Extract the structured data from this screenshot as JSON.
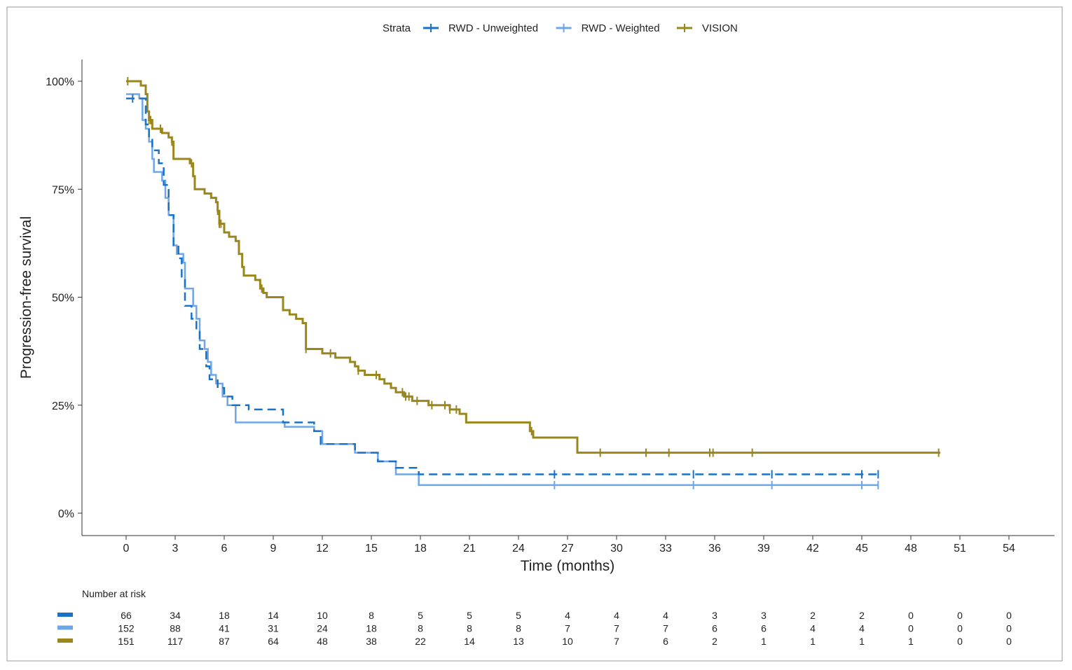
{
  "chart_data": {
    "type": "line",
    "subtype": "kaplan-meier step",
    "legend": {
      "title": "Strata",
      "placement": "top"
    },
    "xlabel": "Time (months)",
    "ylabel": "Progression-free survival",
    "xlim": [
      0,
      54
    ],
    "ylim": [
      0,
      100
    ],
    "xticks": [
      0,
      3,
      6,
      9,
      12,
      15,
      18,
      21,
      24,
      27,
      30,
      33,
      36,
      39,
      42,
      45,
      48,
      51,
      54
    ],
    "yticks": [
      "0%",
      "25%",
      "50%",
      "75%",
      "100%"
    ],
    "grid": false,
    "series": [
      {
        "name": "RWD - Unweighted",
        "color": "#1873c8",
        "dash": true,
        "steps": [
          [
            0,
            96
          ],
          [
            1.2,
            90
          ],
          [
            1.4,
            87
          ],
          [
            1.6,
            84
          ],
          [
            2.0,
            81
          ],
          [
            2.3,
            76
          ],
          [
            2.6,
            69
          ],
          [
            2.9,
            62
          ],
          [
            3.2,
            59
          ],
          [
            3.4,
            54
          ],
          [
            3.6,
            48
          ],
          [
            4.0,
            45
          ],
          [
            4.3,
            42
          ],
          [
            4.5,
            38
          ],
          [
            4.9,
            34
          ],
          [
            5.1,
            31
          ],
          [
            5.6,
            29
          ],
          [
            6.0,
            27
          ],
          [
            6.5,
            25
          ],
          [
            7.5,
            24
          ],
          [
            9.6,
            21
          ],
          [
            11.5,
            19
          ],
          [
            11.9,
            16
          ],
          [
            14.0,
            14
          ],
          [
            15.4,
            12
          ],
          [
            16.5,
            10.5
          ],
          [
            17.9,
            9
          ],
          [
            46,
            9
          ]
        ],
        "censor": [
          0.4,
          26.2,
          34.7,
          39.5,
          45,
          46
        ]
      },
      {
        "name": "RWD - Weighted",
        "color": "#6ea6e6",
        "dash": false,
        "steps": [
          [
            0,
            97
          ],
          [
            0.8,
            96
          ],
          [
            1.0,
            91
          ],
          [
            1.2,
            89
          ],
          [
            1.4,
            86
          ],
          [
            1.6,
            82
          ],
          [
            1.7,
            79
          ],
          [
            2.2,
            77
          ],
          [
            2.4,
            73
          ],
          [
            2.6,
            69
          ],
          [
            2.9,
            62
          ],
          [
            3.1,
            60
          ],
          [
            3.5,
            58
          ],
          [
            3.6,
            52
          ],
          [
            4.1,
            48
          ],
          [
            4.3,
            45
          ],
          [
            4.5,
            40
          ],
          [
            4.8,
            38
          ],
          [
            5.0,
            35
          ],
          [
            5.2,
            32
          ],
          [
            5.5,
            30
          ],
          [
            5.9,
            27
          ],
          [
            6.2,
            25
          ],
          [
            6.7,
            21
          ],
          [
            9.7,
            20
          ],
          [
            11.5,
            19
          ],
          [
            12.0,
            16
          ],
          [
            14.0,
            14
          ],
          [
            15.4,
            12
          ],
          [
            16.5,
            9
          ],
          [
            17.9,
            6.5
          ],
          [
            46,
            6.5
          ]
        ],
        "censor": [
          26.2,
          34.7,
          39.5,
          45,
          46
        ]
      },
      {
        "name": "VISION",
        "color": "#9a861c",
        "dash": false,
        "steps": [
          [
            0,
            100
          ],
          [
            0.9,
            99
          ],
          [
            1.2,
            97
          ],
          [
            1.3,
            93
          ],
          [
            1.4,
            91
          ],
          [
            1.6,
            89
          ],
          [
            2.2,
            88
          ],
          [
            2.6,
            87
          ],
          [
            2.8,
            86
          ],
          [
            2.9,
            82
          ],
          [
            3.9,
            81
          ],
          [
            4.1,
            78
          ],
          [
            4.2,
            75
          ],
          [
            4.8,
            74
          ],
          [
            5.2,
            73
          ],
          [
            5.5,
            72
          ],
          [
            5.6,
            70
          ],
          [
            5.7,
            67
          ],
          [
            6.0,
            65
          ],
          [
            6.3,
            64
          ],
          [
            6.7,
            63
          ],
          [
            6.9,
            60
          ],
          [
            7.1,
            57
          ],
          [
            7.2,
            55
          ],
          [
            7.9,
            54
          ],
          [
            8.2,
            52
          ],
          [
            8.4,
            51
          ],
          [
            8.6,
            50
          ],
          [
            9.6,
            47
          ],
          [
            10.0,
            46
          ],
          [
            10.4,
            45
          ],
          [
            10.8,
            44
          ],
          [
            11.0,
            38
          ],
          [
            12.0,
            37
          ],
          [
            12.8,
            36
          ],
          [
            13.7,
            35
          ],
          [
            14.0,
            34
          ],
          [
            14.2,
            33
          ],
          [
            14.6,
            32
          ],
          [
            15.5,
            31
          ],
          [
            15.8,
            30
          ],
          [
            16.2,
            29
          ],
          [
            16.5,
            28
          ],
          [
            17.0,
            27
          ],
          [
            17.5,
            26
          ],
          [
            18.5,
            25
          ],
          [
            19.8,
            24
          ],
          [
            20.4,
            23
          ],
          [
            20.8,
            21
          ],
          [
            24.7,
            19
          ],
          [
            24.9,
            17.5
          ],
          [
            27.6,
            14
          ],
          [
            49.8,
            14
          ]
        ],
        "censor": [
          0.1,
          1.4,
          1.5,
          2.1,
          2.8,
          4.0,
          5.6,
          5.7,
          5.8,
          8.3,
          11.0,
          12.5,
          14.2,
          15.3,
          16.9,
          17.1,
          17.3,
          17.8,
          18.7,
          19.5,
          19.8,
          20.2,
          24.8,
          29.0,
          31.8,
          33.2,
          35.7,
          35.9,
          38.3,
          49.7
        ]
      }
    ],
    "risk_table": {
      "title": "Number at risk",
      "rows": [
        [
          66,
          34,
          18,
          14,
          10,
          8,
          5,
          5,
          5,
          4,
          4,
          4,
          3,
          3,
          2,
          2,
          0,
          0,
          0
        ],
        [
          152,
          88,
          41,
          31,
          24,
          18,
          8,
          8,
          8,
          7,
          7,
          7,
          6,
          6,
          4,
          4,
          0,
          0,
          0
        ],
        [
          151,
          117,
          87,
          64,
          48,
          38,
          22,
          14,
          13,
          10,
          7,
          6,
          2,
          1,
          1,
          1,
          1,
          0,
          0
        ]
      ]
    }
  }
}
